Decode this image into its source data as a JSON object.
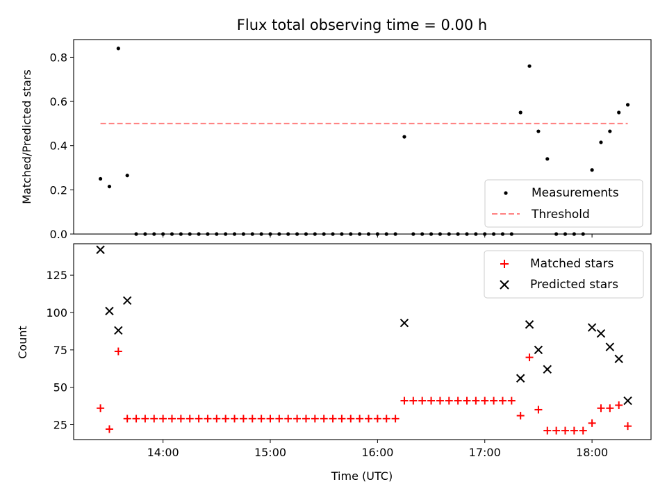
{
  "chart_data": [
    {
      "type": "scatter",
      "title": "Flux total observing time = 0.00 h",
      "xlabel": "",
      "ylabel": "Matched/Predicted stars",
      "xlim": [
        "13:10",
        "18:33"
      ],
      "ylim": [
        0,
        0.88
      ],
      "yticks": [
        0.0,
        0.2,
        0.4,
        0.6,
        0.8
      ],
      "ytick_labels": [
        "0.0",
        "0.2",
        "0.4",
        "0.6",
        "0.8"
      ],
      "legend_position": "lower right",
      "series": [
        {
          "name": "Measurements",
          "color": "#000000",
          "marker": "dot",
          "points": [
            [
              "13:25",
              0.25
            ],
            [
              "13:30",
              0.215
            ],
            [
              "13:35",
              0.84
            ],
            [
              "13:40",
              0.265
            ],
            [
              "13:45",
              0
            ],
            [
              "13:50",
              0
            ],
            [
              "13:55",
              0
            ],
            [
              "14:00",
              0
            ],
            [
              "14:05",
              0
            ],
            [
              "14:10",
              0
            ],
            [
              "14:15",
              0
            ],
            [
              "14:20",
              0
            ],
            [
              "14:25",
              0
            ],
            [
              "14:30",
              0
            ],
            [
              "14:35",
              0
            ],
            [
              "14:40",
              0
            ],
            [
              "14:45",
              0
            ],
            [
              "14:50",
              0
            ],
            [
              "14:55",
              0
            ],
            [
              "15:00",
              0
            ],
            [
              "15:05",
              0
            ],
            [
              "15:10",
              0
            ],
            [
              "15:15",
              0
            ],
            [
              "15:20",
              0
            ],
            [
              "15:25",
              0
            ],
            [
              "15:30",
              0
            ],
            [
              "15:35",
              0
            ],
            [
              "15:40",
              0
            ],
            [
              "15:45",
              0
            ],
            [
              "15:50",
              0
            ],
            [
              "15:55",
              0
            ],
            [
              "16:00",
              0
            ],
            [
              "16:05",
              0
            ],
            [
              "16:10",
              0
            ],
            [
              "16:15",
              0.44
            ],
            [
              "16:20",
              0
            ],
            [
              "16:25",
              0
            ],
            [
              "16:30",
              0
            ],
            [
              "16:35",
              0
            ],
            [
              "16:40",
              0
            ],
            [
              "16:45",
              0
            ],
            [
              "16:50",
              0
            ],
            [
              "16:55",
              0
            ],
            [
              "17:00",
              0
            ],
            [
              "17:05",
              0
            ],
            [
              "17:10",
              0
            ],
            [
              "17:15",
              0
            ],
            [
              "17:20",
              0.55
            ],
            [
              "17:25",
              0.76
            ],
            [
              "17:30",
              0.465
            ],
            [
              "17:35",
              0.34
            ],
            [
              "17:40",
              0
            ],
            [
              "17:45",
              0
            ],
            [
              "17:50",
              0
            ],
            [
              "17:55",
              0
            ],
            [
              "18:00",
              0.29
            ],
            [
              "18:05",
              0.415
            ],
            [
              "18:10",
              0.465
            ],
            [
              "18:15",
              0.55
            ],
            [
              "18:20",
              0.585
            ]
          ]
        },
        {
          "name": "Threshold",
          "color": "#ff7f7f",
          "line_style": "dashed",
          "points": [
            [
              "13:25",
              0.5
            ],
            [
              "18:20",
              0.5
            ]
          ]
        }
      ]
    },
    {
      "type": "scatter",
      "title": "",
      "xlabel": "Time (UTC)",
      "ylabel": "Count",
      "xlim": [
        "13:10",
        "18:33"
      ],
      "ylim": [
        15,
        146
      ],
      "yticks": [
        25,
        50,
        75,
        100,
        125
      ],
      "ytick_labels": [
        "25",
        "50",
        "75",
        "100",
        "125"
      ],
      "xticks": [
        "14:00",
        "15:00",
        "16:00",
        "17:00",
        "18:00"
      ],
      "xtick_labels": [
        "14:00",
        "15:00",
        "16:00",
        "17:00",
        "18:00"
      ],
      "legend_position": "upper right",
      "series": [
        {
          "name": "Matched stars",
          "color": "#ff0000",
          "marker": "plus",
          "points": [
            [
              "13:25",
              36
            ],
            [
              "13:30",
              22
            ],
            [
              "13:35",
              74
            ],
            [
              "13:40",
              29
            ],
            [
              "13:45",
              29
            ],
            [
              "13:50",
              29
            ],
            [
              "13:55",
              29
            ],
            [
              "14:00",
              29
            ],
            [
              "14:05",
              29
            ],
            [
              "14:10",
              29
            ],
            [
              "14:15",
              29
            ],
            [
              "14:20",
              29
            ],
            [
              "14:25",
              29
            ],
            [
              "14:30",
              29
            ],
            [
              "14:35",
              29
            ],
            [
              "14:40",
              29
            ],
            [
              "14:45",
              29
            ],
            [
              "14:50",
              29
            ],
            [
              "14:55",
              29
            ],
            [
              "15:00",
              29
            ],
            [
              "15:05",
              29
            ],
            [
              "15:10",
              29
            ],
            [
              "15:15",
              29
            ],
            [
              "15:20",
              29
            ],
            [
              "15:25",
              29
            ],
            [
              "15:30",
              29
            ],
            [
              "15:35",
              29
            ],
            [
              "15:40",
              29
            ],
            [
              "15:45",
              29
            ],
            [
              "15:50",
              29
            ],
            [
              "15:55",
              29
            ],
            [
              "16:00",
              29
            ],
            [
              "16:05",
              29
            ],
            [
              "16:10",
              29
            ],
            [
              "16:15",
              41
            ],
            [
              "16:20",
              41
            ],
            [
              "16:25",
              41
            ],
            [
              "16:30",
              41
            ],
            [
              "16:35",
              41
            ],
            [
              "16:40",
              41
            ],
            [
              "16:45",
              41
            ],
            [
              "16:50",
              41
            ],
            [
              "16:55",
              41
            ],
            [
              "17:00",
              41
            ],
            [
              "17:05",
              41
            ],
            [
              "17:10",
              41
            ],
            [
              "17:15",
              41
            ],
            [
              "17:20",
              31
            ],
            [
              "17:25",
              70
            ],
            [
              "17:30",
              35
            ],
            [
              "17:35",
              21
            ],
            [
              "17:40",
              21
            ],
            [
              "17:45",
              21
            ],
            [
              "17:50",
              21
            ],
            [
              "17:55",
              21
            ],
            [
              "18:00",
              26
            ],
            [
              "18:05",
              36
            ],
            [
              "18:10",
              36
            ],
            [
              "18:15",
              38
            ],
            [
              "18:20",
              24
            ]
          ]
        },
        {
          "name": "Predicted stars",
          "color": "#000000",
          "marker": "x",
          "points": [
            [
              "13:25",
              142
            ],
            [
              "13:30",
              101
            ],
            [
              "13:35",
              88
            ],
            [
              "13:40",
              108
            ],
            [
              "16:15",
              93
            ],
            [
              "17:20",
              56
            ],
            [
              "17:25",
              92
            ],
            [
              "17:30",
              75
            ],
            [
              "17:35",
              62
            ],
            [
              "18:00",
              90
            ],
            [
              "18:05",
              86
            ],
            [
              "18:10",
              77
            ],
            [
              "18:15",
              69
            ],
            [
              "18:20",
              41
            ]
          ]
        }
      ]
    }
  ]
}
